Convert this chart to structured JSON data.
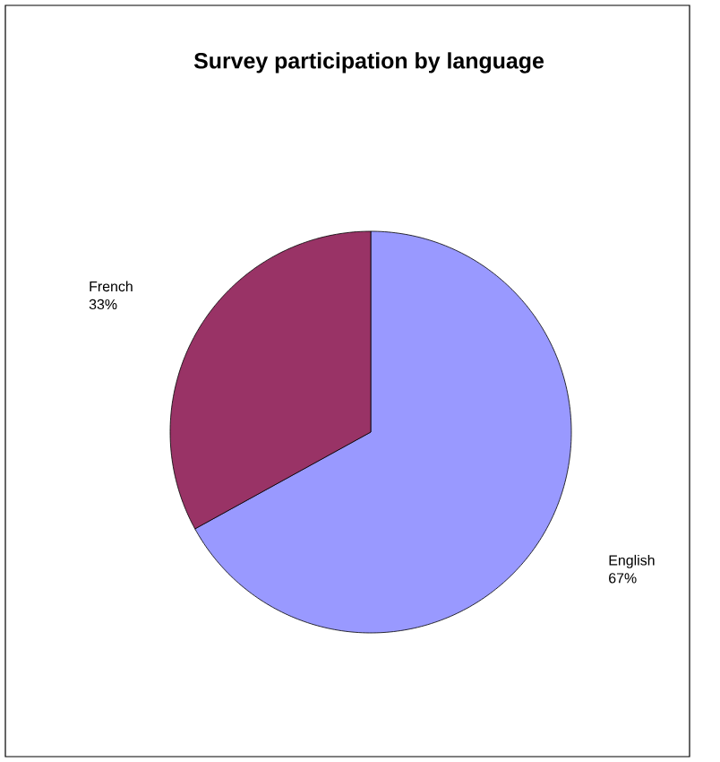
{
  "chart_data": {
    "type": "pie",
    "title": "Survey participation by language",
    "categories": [
      "English",
      "French"
    ],
    "values": [
      67,
      33
    ],
    "colors": [
      "#9999ff",
      "#993366"
    ],
    "value_labels": [
      "67%",
      "33%"
    ]
  }
}
